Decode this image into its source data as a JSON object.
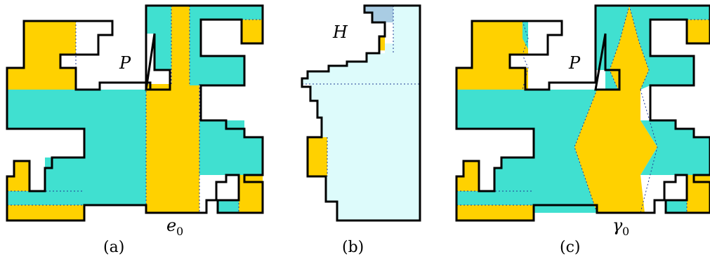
{
  "colors": {
    "yellow": "#FFD100",
    "teal": "#40E0D0",
    "light_cyan": "#DDFBFB",
    "light_blue": "#A9CCE3",
    "outline": "#000000",
    "dash_blue": "#1f3a93"
  },
  "panel_a": {
    "caption": "(a)",
    "polygon_label": "P",
    "edge_label": "e",
    "edge_sub": "0"
  },
  "panel_b": {
    "caption": "(b)",
    "hole_label": "H"
  },
  "panel_c": {
    "caption": "(c)",
    "polygon_label": "P",
    "path_label": "γ",
    "path_sub": "0"
  }
}
